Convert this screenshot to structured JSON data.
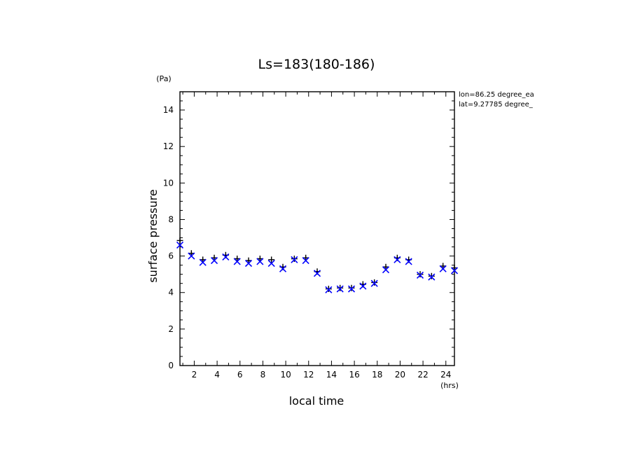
{
  "chart_data": {
    "type": "scatter",
    "title": "Ls=183(180-186)",
    "xlabel": "local time",
    "ylabel": "surface pressure",
    "x_unit": "(hrs)",
    "y_unit": "(Pa)",
    "xlim": [
      0.75,
      24.75
    ],
    "ylim": [
      0,
      15
    ],
    "xticks": [
      2,
      4,
      6,
      8,
      10,
      12,
      14,
      16,
      18,
      20,
      22,
      24
    ],
    "yticks": [
      0,
      2,
      4,
      6,
      8,
      10,
      12,
      14
    ],
    "annotations": [
      "lon=86.25 degree_ea",
      "lat=9.27785 degree_"
    ],
    "grid": false,
    "series": [
      {
        "marker": "plus",
        "color": "#000000",
        "x": [
          0.75,
          1.75,
          2.75,
          3.75,
          4.75,
          5.75,
          6.75,
          7.75,
          8.75,
          9.75,
          10.75,
          11.75,
          12.75,
          13.75,
          14.75,
          15.75,
          16.75,
          17.75,
          18.75,
          19.75,
          20.75,
          21.75,
          22.75,
          23.75,
          24.75
        ],
        "values": [
          6.85,
          6.15,
          5.8,
          5.9,
          6.05,
          5.85,
          5.75,
          5.85,
          5.8,
          5.4,
          5.85,
          5.9,
          5.15,
          4.2,
          4.25,
          4.25,
          4.45,
          4.55,
          5.4,
          5.9,
          5.8,
          5.0,
          4.9,
          5.45,
          5.35
        ]
      },
      {
        "marker": "x",
        "color": "#0000ff",
        "x": [
          0.75,
          1.75,
          2.75,
          3.75,
          4.75,
          5.75,
          6.75,
          7.75,
          8.75,
          9.75,
          10.75,
          11.75,
          12.75,
          13.75,
          14.75,
          15.75,
          16.75,
          17.75,
          18.75,
          19.75,
          20.75,
          21.75,
          22.75,
          23.75,
          24.75
        ],
        "values": [
          6.6,
          6.0,
          5.65,
          5.75,
          5.95,
          5.7,
          5.6,
          5.7,
          5.6,
          5.3,
          5.8,
          5.75,
          5.05,
          4.15,
          4.2,
          4.2,
          4.35,
          4.5,
          5.25,
          5.8,
          5.7,
          4.95,
          4.85,
          5.3,
          5.2
        ]
      }
    ]
  }
}
